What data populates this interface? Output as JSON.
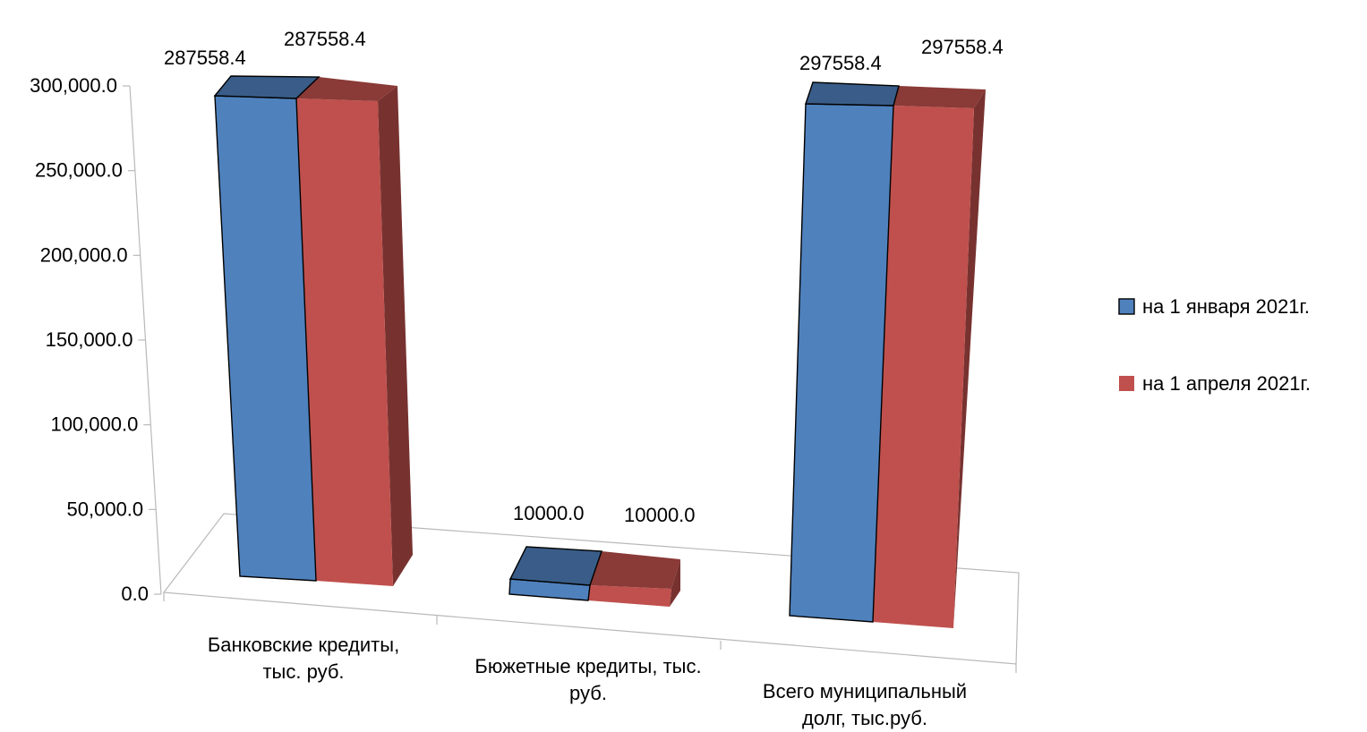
{
  "chart_data": {
    "type": "bar",
    "categories": [
      [
        "Банковские кредиты,",
        "тыс. руб."
      ],
      [
        "Бюжетные кредиты, тыс.",
        "руб."
      ],
      [
        "Всего муниципальный",
        "долг, тыс.руб."
      ]
    ],
    "series": [
      {
        "name": "на 1 января 2021г.",
        "values": [
          287558.4,
          10000.0,
          297558.4
        ],
        "labels": [
          "287558.4",
          "10000.0",
          "297558.4"
        ],
        "color": "#4F81BD"
      },
      {
        "name": "на 1 апреля 2021г.",
        "values": [
          287558.4,
          10000.0,
          297558.4
        ],
        "labels": [
          "287558.4",
          "10000.0",
          "297558.4"
        ],
        "color": "#C0504D"
      }
    ],
    "y_ticks": [
      "0.0",
      "50,000.0",
      "100,000.0",
      "150,000.0",
      "200,000.0",
      "250,000.0",
      "300,000.0"
    ],
    "ylim": [
      0,
      300000
    ],
    "grid": false,
    "legend_position": "right",
    "projection": "3d-perspective"
  }
}
